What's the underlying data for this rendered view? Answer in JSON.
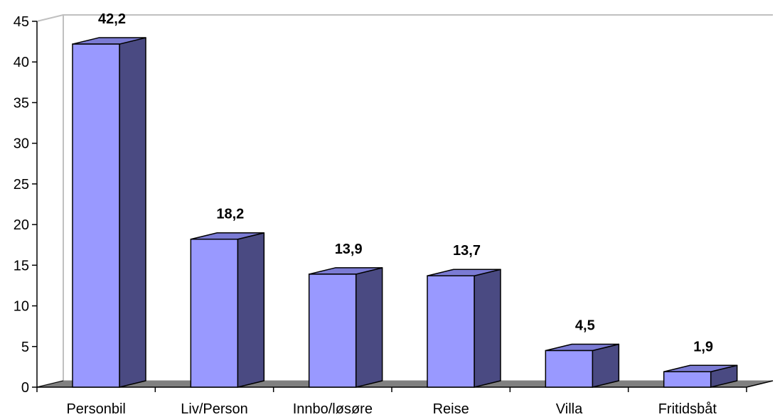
{
  "chart_data": {
    "type": "bar",
    "categories": [
      "Personbil",
      "Liv/Person",
      "Innbo/løsøre",
      "Reise",
      "Villa",
      "Fritidsbåt"
    ],
    "values": [
      42.2,
      18.2,
      13.9,
      13.7,
      4.5,
      1.9
    ],
    "value_labels": [
      "42,2",
      "18,2",
      "13,9",
      "13,7",
      "4,5",
      "1,9"
    ],
    "ylim": [
      0,
      45
    ],
    "yticks": [
      "0",
      "5",
      "10",
      "15",
      "20",
      "25",
      "30",
      "35",
      "40",
      "45"
    ],
    "grid": false,
    "legend": "none",
    "style": "3d-column",
    "colors": {
      "bar_front": "#9999ff",
      "bar_side": "#4a4a82",
      "bar_top": "#7b7bd4",
      "floor": "#808080",
      "wall": "#c0c0c0",
      "axis": "#000000"
    }
  }
}
